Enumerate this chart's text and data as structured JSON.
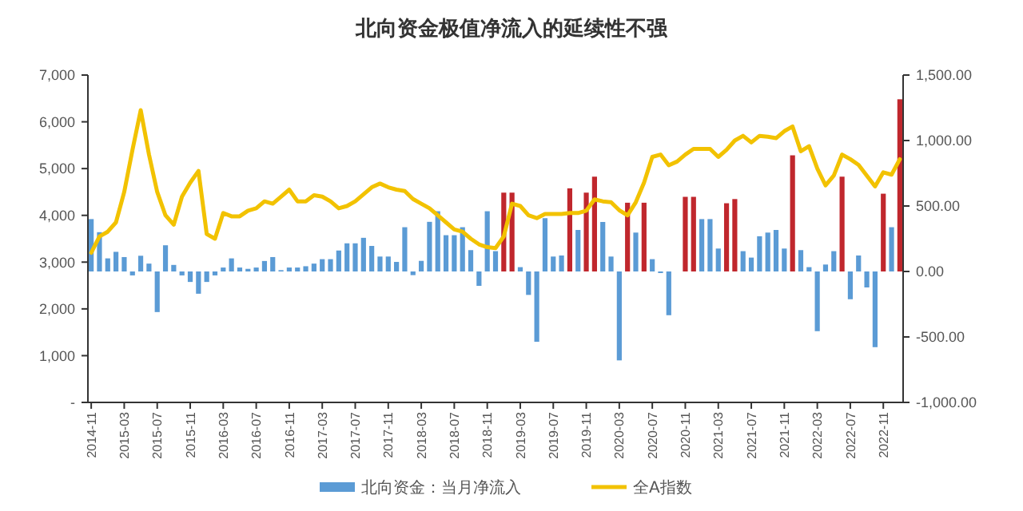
{
  "chart_data": {
    "type": "bar",
    "title": "北向资金极值净流入的延续性不强",
    "categories": [
      "2014-11",
      null,
      null,
      null,
      "2015-03",
      null,
      null,
      null,
      "2015-07",
      null,
      null,
      null,
      "2015-11",
      null,
      null,
      null,
      "2016-03",
      null,
      null,
      null,
      "2016-07",
      null,
      null,
      null,
      "2016-11",
      null,
      null,
      null,
      "2017-03",
      null,
      null,
      null,
      "2017-07",
      null,
      null,
      null,
      "2017-11",
      null,
      null,
      null,
      "2018-03",
      null,
      null,
      null,
      "2018-07",
      null,
      null,
      null,
      "2018-11",
      null,
      null,
      null,
      "2019-03",
      null,
      null,
      null,
      "2019-07",
      null,
      null,
      null,
      "2019-11",
      null,
      null,
      null,
      "2020-03",
      null,
      null,
      null,
      "2020-07",
      null,
      null,
      null,
      "2020-11",
      null,
      null,
      null,
      "2021-03",
      null,
      null,
      null,
      "2021-07",
      null,
      null,
      null,
      "2021-11",
      null,
      null,
      null,
      "2022-03",
      null,
      null,
      null,
      "2022-07",
      null,
      null,
      null,
      "2022-11",
      null,
      null
    ],
    "series": [
      {
        "name": "北向资金：当月净流入",
        "axis": "y2",
        "color": "#5b9bd5",
        "values": [
          400,
          300,
          100,
          150,
          110,
          -30,
          120,
          60,
          -310,
          200,
          50,
          -30,
          -80,
          -170,
          -80,
          -30,
          30,
          100,
          30,
          20,
          30,
          80,
          110,
          10,
          30,
          30,
          40,
          60,
          94,
          94,
          160,
          215,
          215,
          257,
          195,
          114,
          114,
          73,
          338,
          -28,
          81,
          379,
          460,
          277,
          277,
          338,
          163,
          -110,
          460,
          155,
          602,
          602,
          33,
          -179,
          -537,
          407,
          114,
          122,
          635,
          317,
          602,
          724,
          378,
          114,
          -679,
          525,
          297,
          525,
          94,
          -12,
          -334,
          0,
          570,
          570,
          400,
          400,
          175,
          521,
          553,
          155,
          106,
          269,
          297,
          317,
          175,
          887,
          163,
          33,
          -456,
          53,
          155,
          724,
          -212,
          122,
          -122,
          -578,
          594,
          338,
          1315
        ],
        "colors": [
          "#5b9bd5",
          "#5b9bd5",
          "#5b9bd5",
          "#5b9bd5",
          "#5b9bd5",
          "#5b9bd5",
          "#5b9bd5",
          "#5b9bd5",
          "#5b9bd5",
          "#5b9bd5",
          "#5b9bd5",
          "#5b9bd5",
          "#5b9bd5",
          "#5b9bd5",
          "#5b9bd5",
          "#5b9bd5",
          "#5b9bd5",
          "#5b9bd5",
          "#5b9bd5",
          "#5b9bd5",
          "#5b9bd5",
          "#5b9bd5",
          "#5b9bd5",
          "#5b9bd5",
          "#5b9bd5",
          "#5b9bd5",
          "#5b9bd5",
          "#5b9bd5",
          "#5b9bd5",
          "#5b9bd5",
          "#5b9bd5",
          "#5b9bd5",
          "#5b9bd5",
          "#5b9bd5",
          "#5b9bd5",
          "#5b9bd5",
          "#5b9bd5",
          "#5b9bd5",
          "#5b9bd5",
          "#5b9bd5",
          "#5b9bd5",
          "#5b9bd5",
          "#5b9bd5",
          "#5b9bd5",
          "#5b9bd5",
          "#5b9bd5",
          "#5b9bd5",
          "#5b9bd5",
          "#5b9bd5",
          "#5b9bd5",
          "#c0272d",
          "#c0272d",
          "#5b9bd5",
          "#5b9bd5",
          "#5b9bd5",
          "#5b9bd5",
          "#5b9bd5",
          "#5b9bd5",
          "#c0272d",
          "#5b9bd5",
          "#c0272d",
          "#c0272d",
          "#5b9bd5",
          "#5b9bd5",
          "#5b9bd5",
          "#c0272d",
          "#5b9bd5",
          "#c0272d",
          "#5b9bd5",
          "#5b9bd5",
          "#5b9bd5",
          "#5b9bd5",
          "#c0272d",
          "#c0272d",
          "#5b9bd5",
          "#5b9bd5",
          "#5b9bd5",
          "#c0272d",
          "#c0272d",
          "#5b9bd5",
          "#5b9bd5",
          "#5b9bd5",
          "#5b9bd5",
          "#5b9bd5",
          "#5b9bd5",
          "#c0272d",
          "#5b9bd5",
          "#5b9bd5",
          "#5b9bd5",
          "#5b9bd5",
          "#5b9bd5",
          "#c0272d",
          "#5b9bd5",
          "#5b9bd5",
          "#5b9bd5",
          "#5b9bd5",
          "#c0272d",
          "#5b9bd5",
          "#c0272d"
        ]
      },
      {
        "name": "全A指数",
        "type": "line",
        "color": "#f2c200",
        "values": [
          3200,
          3550,
          3650,
          3850,
          4500,
          5400,
          6250,
          5300,
          4500,
          4000,
          3800,
          4400,
          4700,
          4950,
          3600,
          3500,
          4050,
          3980,
          3980,
          4100,
          4150,
          4300,
          4250,
          4400,
          4550,
          4300,
          4300,
          4430,
          4400,
          4300,
          4150,
          4200,
          4300,
          4450,
          4600,
          4680,
          4600,
          4550,
          4520,
          4350,
          4250,
          4150,
          4000,
          3850,
          3700,
          3650,
          3500,
          3380,
          3320,
          3300,
          3550,
          4250,
          4200,
          4000,
          3940,
          4030,
          4030,
          4030,
          4050,
          4050,
          4100,
          4340,
          4300,
          4280,
          4110,
          4000,
          4280,
          4700,
          5250,
          5300,
          5070,
          5150,
          5300,
          5420,
          5420,
          5420,
          5250,
          5400,
          5600,
          5700,
          5560,
          5700,
          5680,
          5650,
          5800,
          5900,
          5370,
          5480,
          5000,
          4640,
          4850,
          5300,
          5200,
          5080,
          4850,
          4620,
          4920,
          4870,
          5200
        ]
      }
    ],
    "ylim": [
      0,
      7000
    ],
    "yticks": [
      {
        "value": 0,
        "label": "-"
      },
      {
        "value": 1000,
        "label": "1,000"
      },
      {
        "value": 2000,
        "label": "2,000"
      },
      {
        "value": 3000,
        "label": "3,000"
      },
      {
        "value": 4000,
        "label": "4,000"
      },
      {
        "value": 5000,
        "label": "5,000"
      },
      {
        "value": 6000,
        "label": "6,000"
      },
      {
        "value": 7000,
        "label": "7,000"
      }
    ],
    "y2lim": [
      -1000,
      1500
    ],
    "y2ticks": [
      {
        "value": -1000,
        "label": "-1,000.00"
      },
      {
        "value": -500,
        "label": "-500.00"
      },
      {
        "value": 0,
        "label": "0.00"
      },
      {
        "value": 500,
        "label": "500.00"
      },
      {
        "value": 1000,
        "label": "1,000.00"
      },
      {
        "value": 1500,
        "label": "1,500.00"
      }
    ],
    "legend": "bottom"
  }
}
